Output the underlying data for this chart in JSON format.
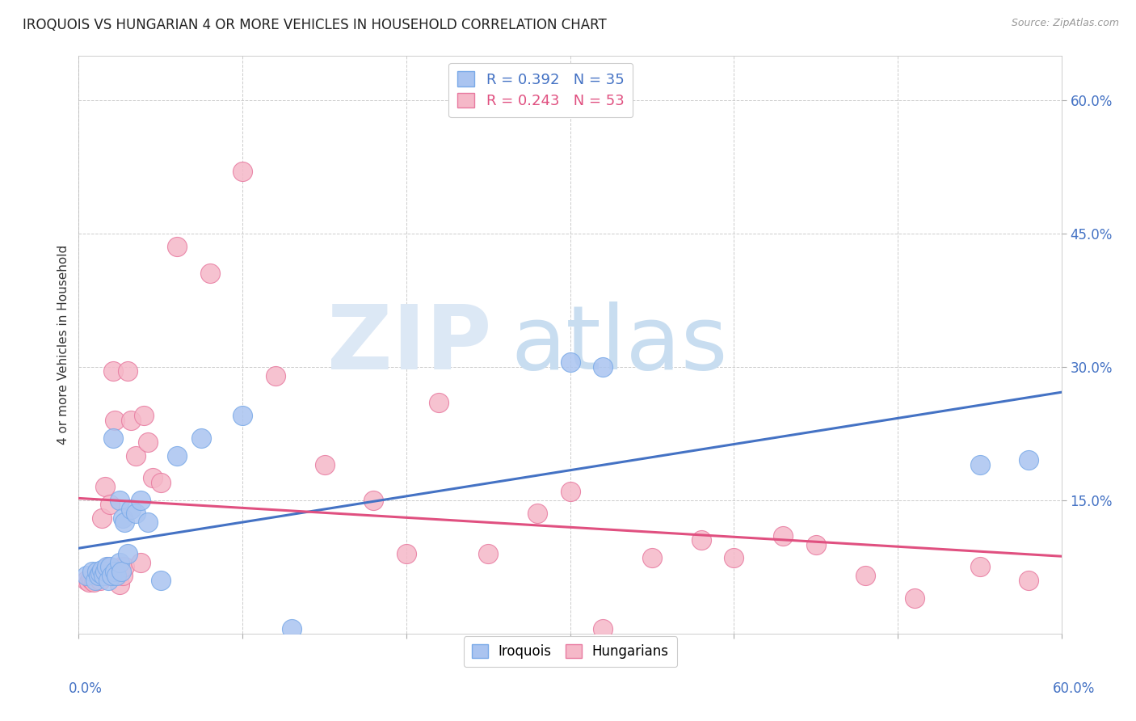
{
  "title": "IROQUOIS VS HUNGARIAN 4 OR MORE VEHICLES IN HOUSEHOLD CORRELATION CHART",
  "source": "Source: ZipAtlas.com",
  "ylabel": "4 or more Vehicles in Household",
  "iroquois_color": "#aac4f0",
  "iroquois_edge": "#7aaae8",
  "hungarian_color": "#f5b8c8",
  "hungarian_edge": "#e87aa0",
  "trend_iroquois": "#4472c4",
  "trend_hungarian": "#e05080",
  "legend_line1": "R = 0.392   N = 35",
  "legend_line2": "R = 0.243   N = 53",
  "legend_color1": "#4472c4",
  "legend_color2": "#e05080",
  "xlim": [
    0.0,
    0.6
  ],
  "ylim": [
    0.0,
    0.65
  ],
  "yticks": [
    0.15,
    0.3,
    0.45,
    0.6
  ],
  "ytick_labels": [
    "15.0%",
    "30.0%",
    "45.0%",
    "60.0%"
  ],
  "xtick_left_label": "0.0%",
  "xtick_right_label": "60.0%",
  "iroquois_x": [
    0.005,
    0.008,
    0.01,
    0.011,
    0.012,
    0.013,
    0.014,
    0.015,
    0.016,
    0.017,
    0.018,
    0.019,
    0.02,
    0.021,
    0.022,
    0.023,
    0.025,
    0.025,
    0.026,
    0.027,
    0.028,
    0.03,
    0.032,
    0.035,
    0.038,
    0.042,
    0.05,
    0.06,
    0.075,
    0.1,
    0.13,
    0.3,
    0.32,
    0.55,
    0.58
  ],
  "iroquois_y": [
    0.065,
    0.07,
    0.06,
    0.07,
    0.065,
    0.068,
    0.072,
    0.065,
    0.07,
    0.075,
    0.06,
    0.075,
    0.065,
    0.22,
    0.07,
    0.065,
    0.08,
    0.15,
    0.07,
    0.13,
    0.125,
    0.09,
    0.14,
    0.135,
    0.15,
    0.125,
    0.06,
    0.2,
    0.22,
    0.245,
    0.005,
    0.305,
    0.3,
    0.19,
    0.195
  ],
  "hungarian_x": [
    0.005,
    0.006,
    0.007,
    0.008,
    0.009,
    0.01,
    0.011,
    0.012,
    0.013,
    0.014,
    0.015,
    0.016,
    0.017,
    0.018,
    0.019,
    0.02,
    0.021,
    0.022,
    0.023,
    0.024,
    0.025,
    0.026,
    0.027,
    0.028,
    0.03,
    0.032,
    0.035,
    0.038,
    0.04,
    0.042,
    0.045,
    0.05,
    0.06,
    0.08,
    0.1,
    0.12,
    0.15,
    0.18,
    0.2,
    0.22,
    0.25,
    0.28,
    0.3,
    0.32,
    0.35,
    0.38,
    0.4,
    0.43,
    0.45,
    0.48,
    0.51,
    0.55,
    0.58
  ],
  "hungarian_y": [
    0.06,
    0.058,
    0.062,
    0.06,
    0.058,
    0.065,
    0.065,
    0.065,
    0.06,
    0.13,
    0.07,
    0.165,
    0.065,
    0.075,
    0.145,
    0.07,
    0.295,
    0.24,
    0.07,
    0.065,
    0.055,
    0.075,
    0.065,
    0.075,
    0.295,
    0.24,
    0.2,
    0.08,
    0.245,
    0.215,
    0.175,
    0.17,
    0.435,
    0.405,
    0.52,
    0.29,
    0.19,
    0.15,
    0.09,
    0.26,
    0.09,
    0.135,
    0.16,
    0.005,
    0.085,
    0.105,
    0.085,
    0.11,
    0.1,
    0.065,
    0.04,
    0.075,
    0.06
  ],
  "watermark_zip_color": "#dce8f5",
  "watermark_atlas_color": "#c8ddf0",
  "background_color": "#ffffff"
}
